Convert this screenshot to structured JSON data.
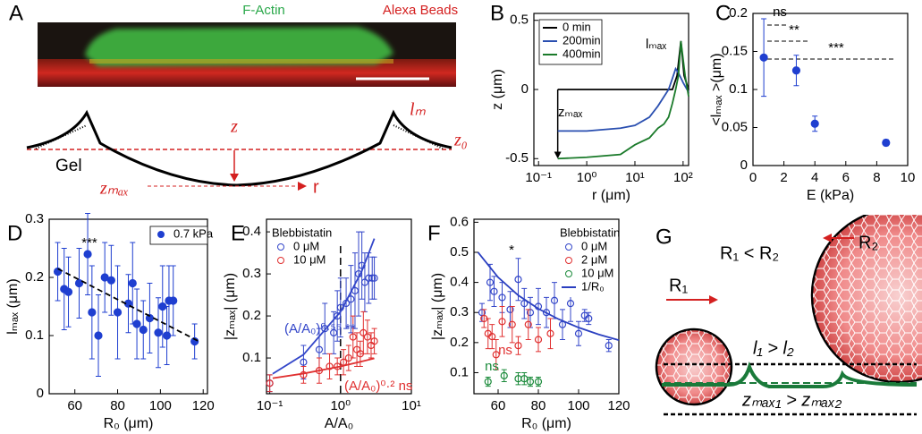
{
  "diagram_a": {
    "panel": "A",
    "labels": {
      "f_actin": "F-Actin",
      "alexa_beads": "Alexa Beads",
      "z": "z",
      "lm": "lₘ",
      "z0": "z₀",
      "gel": "Gel",
      "zmax": "zₘₐₓ",
      "r": "r"
    }
  },
  "diagram_g": {
    "panel": "G",
    "labels": {
      "r2": "R₂",
      "r1_lt_r2": "R₁ < R₂",
      "r1": "R₁",
      "l1_gt_l2": "l₁ > l₂",
      "zmax1_gt_zmax2": "zₘₐₓ₁ > zₘₐₓ₂"
    }
  },
  "chart_data": [
    {
      "panel": "B",
      "type": "line",
      "xlabel": "r (μm)",
      "ylabel": "z (μm)",
      "log_x": true,
      "xlim": [
        0.08,
        130
      ],
      "ylim": [
        -0.55,
        0.55
      ],
      "xticks": [
        {
          "value": 0.1,
          "label": "10⁻¹"
        },
        {
          "value": 1,
          "label": "10⁰"
        },
        {
          "value": 10,
          "label": "10¹"
        },
        {
          "value": 100,
          "label": "10²"
        }
      ],
      "yticks": [
        -0.5,
        0,
        0.5
      ],
      "legend": "upper left",
      "series": [
        {
          "name": "0 min",
          "color": "#000000",
          "style": "line",
          "x": [
            0.25,
            60,
            75,
            90,
            105,
            130
          ],
          "values": [
            0,
            0,
            0.1,
            0.35,
            0.1,
            0
          ]
        },
        {
          "name": "200min",
          "color": "#2a4fb0",
          "style": "line",
          "x": [
            0.25,
            1,
            5,
            10,
            20,
            30,
            50,
            60,
            70,
            80,
            100,
            130
          ],
          "values": [
            -0.3,
            -0.3,
            -0.28,
            -0.26,
            -0.2,
            -0.12,
            0,
            0.08,
            0.15,
            0.12,
            0.05,
            -0.02
          ]
        },
        {
          "name": "400min",
          "color": "#1a7a2a",
          "style": "line",
          "x": [
            0.25,
            1,
            5,
            10,
            20,
            30,
            40,
            50,
            60,
            70,
            80,
            90,
            110,
            130
          ],
          "values": [
            -0.5,
            -0.49,
            -0.47,
            -0.4,
            -0.35,
            -0.28,
            -0.25,
            -0.2,
            -0.1,
            0,
            0.1,
            0.35,
            0.1,
            -0.05
          ]
        }
      ],
      "annotations": [
        {
          "text": "lₘₐₓ",
          "color": "#000000"
        },
        {
          "text": "zₘₐₓ",
          "color": "#000000"
        }
      ]
    },
    {
      "panel": "C",
      "type": "scatter",
      "xlabel": "E (kPa)",
      "ylabel": "<lₘₐₓ >(μm)",
      "xlim": [
        0,
        10
      ],
      "ylim": [
        0,
        0.2
      ],
      "xticks": [
        0,
        2,
        4,
        6,
        8,
        10
      ],
      "yticks": [
        0,
        0.05,
        0.1,
        0.15,
        0.2
      ],
      "series": [
        {
          "color": "#1f3fd0",
          "style": "filled",
          "x": [
            0.7,
            2.8,
            4,
            8.6
          ],
          "values": [
            0.142,
            0.125,
            0.055,
            0.03
          ],
          "errors": [
            0.051,
            0.02,
            0.01,
            0.004
          ]
        }
      ],
      "annotations": [
        {
          "text": "ns",
          "color": "#000000"
        },
        {
          "text": "**",
          "color": "#000000"
        },
        {
          "text": "***",
          "color": "#000000"
        }
      ]
    },
    {
      "panel": "D",
      "type": "scatter",
      "xlabel": "R₀ (μm)",
      "ylabel": "lₘₐₓ (μm)",
      "xlim": [
        48,
        122
      ],
      "ylim": [
        0,
        0.3
      ],
      "xticks": [
        60,
        80,
        100,
        120
      ],
      "yticks": [
        0,
        0.1,
        0.2,
        0.3
      ],
      "legend": "upper right",
      "series": [
        {
          "name": "0.7 kPa",
          "color": "#1f3fd0",
          "style": "filled",
          "x": [
            52,
            55,
            57,
            62,
            66,
            68,
            71,
            74,
            77,
            80,
            85,
            87,
            89,
            92,
            95,
            99,
            101,
            103,
            104,
            106,
            116
          ],
          "values": [
            0.21,
            0.18,
            0.175,
            0.19,
            0.24,
            0.14,
            0.1,
            0.2,
            0.195,
            0.14,
            0.155,
            0.19,
            0.12,
            0.11,
            0.13,
            0.105,
            0.15,
            0.1,
            0.16,
            0.16,
            0.09
          ],
          "errors": [
            0.05,
            0.07,
            0.06,
            0.06,
            0.07,
            0.08,
            0.07,
            0.06,
            0.06,
            0.08,
            0.05,
            0.07,
            0.06,
            0.05,
            0.06,
            0.06,
            0.07,
            0.05,
            0.06,
            0.06,
            0.03
          ]
        },
        {
          "color": "#000000",
          "style": "dashed",
          "x": [
            52,
            118
          ],
          "values": [
            0.215,
            0.09
          ]
        }
      ],
      "annotations": [
        {
          "text": "***",
          "color": "#000000"
        }
      ]
    },
    {
      "panel": "E",
      "type": "scatter",
      "xlabel": "A/A₀",
      "ylabel": "|zₘₐₓ| (μm)",
      "log_x": true,
      "xlim": [
        0.09,
        10
      ],
      "ylim": [
        0.015,
        0.43
      ],
      "xticks": [
        {
          "value": 0.1,
          "label": "10⁻¹"
        },
        {
          "value": 1,
          "label": "10⁰"
        },
        {
          "value": 10,
          "label": "10¹"
        }
      ],
      "yticks": [
        0.1,
        0.2,
        0.3,
        0.4
      ],
      "legend": "upper left",
      "legend_title": "Blebbistatin",
      "series": [
        {
          "name": "0 μM",
          "color": "#3346c9",
          "style": "open",
          "x": [
            0.1,
            0.3,
            0.5,
            0.6,
            0.8,
            0.9,
            1,
            1.2,
            1.4,
            1.6,
            1.8,
            2,
            2.2,
            2.5,
            2.8,
            3
          ],
          "values": [
            0.04,
            0.09,
            0.12,
            0.17,
            0.16,
            0.2,
            0.22,
            0.23,
            0.24,
            0.26,
            0.3,
            0.32,
            0.28,
            0.29,
            0.29,
            0.29
          ],
          "errors": [
            0.02,
            0.04,
            0.05,
            0.06,
            0.05,
            0.06,
            0.07,
            0.06,
            0.08,
            0.09,
            0.1,
            0.08,
            0.07,
            0.06,
            0.05,
            0.05
          ]
        },
        {
          "name": "10 μM",
          "color": "#e03030",
          "style": "open",
          "x": [
            0.1,
            0.3,
            0.5,
            0.7,
            0.9,
            1.1,
            1.3,
            1.5,
            1.7,
            1.9,
            2.1,
            2.4,
            2.7,
            3
          ],
          "values": [
            0.04,
            0.06,
            0.07,
            0.08,
            0.08,
            0.09,
            0.1,
            0.15,
            0.12,
            0.11,
            0.16,
            0.15,
            0.13,
            0.14
          ],
          "errors": [
            0.02,
            0.02,
            0.03,
            0.03,
            0.02,
            0.03,
            0.03,
            0.05,
            0.04,
            0.03,
            0.05,
            0.04,
            0.03,
            0.03
          ]
        },
        {
          "color": "#3346c9",
          "style": "line",
          "x": [
            0.11,
            0.3,
            1,
            2,
            3
          ],
          "values": [
            0.0624,
            0.108,
            0.21,
            0.307,
            0.384
          ]
        },
        {
          "color": "#e03030",
          "style": "line",
          "x": [
            0.11,
            0.3,
            1,
            2,
            3
          ],
          "values": [
            0.052,
            0.063,
            0.08,
            0.092,
            0.099
          ]
        }
      ],
      "annotations": [
        {
          "text": "(A/A₀)⁰·⁵⁵ **",
          "color": "#3346c9"
        },
        {
          "text": "(A/A₀)⁰·² ns",
          "color": "#e03030"
        }
      ]
    },
    {
      "panel": "F",
      "type": "scatter",
      "xlabel": "R₀ (μm)",
      "ylabel": "|zₘₐₓ| (μm)",
      "xlim": [
        48,
        120
      ],
      "ylim": [
        0.03,
        0.61
      ],
      "xticks": [
        60,
        80,
        100,
        120
      ],
      "yticks": [
        0.1,
        0.2,
        0.3,
        0.4,
        0.5,
        0.6
      ],
      "legend": "upper right",
      "legend_title": "Blebbistatin",
      "series": [
        {
          "name": "0 μM",
          "color": "#3346c9",
          "style": "open",
          "x": [
            52,
            56,
            58,
            62,
            66,
            70,
            73,
            76,
            80,
            84,
            88,
            92,
            96,
            100,
            103,
            105,
            115
          ],
          "values": [
            0.3,
            0.4,
            0.37,
            0.35,
            0.31,
            0.41,
            0.33,
            0.3,
            0.32,
            0.3,
            0.34,
            0.26,
            0.33,
            0.23,
            0.29,
            0.28,
            0.19
          ],
          "errors": [
            0.03,
            0.06,
            0.05,
            0.05,
            0.06,
            0.07,
            0.05,
            0.05,
            0.06,
            0.05,
            0.06,
            0.05,
            0.06,
            0.04,
            0.02,
            0.02,
            0.02
          ]
        },
        {
          "name": "2 μM",
          "color": "#e03030",
          "style": "open",
          "x": [
            53,
            55,
            57,
            59,
            62,
            67,
            70,
            75,
            80,
            86
          ],
          "values": [
            0.28,
            0.23,
            0.22,
            0.16,
            0.27,
            0.26,
            0.19,
            0.26,
            0.21,
            0.23
          ],
          "errors": [
            0.03,
            0.05,
            0.04,
            0.05,
            0.05,
            0.06,
            0.03,
            0.05,
            0.04,
            0.05
          ]
        },
        {
          "name": "10 μM",
          "color": "#1a8a3a",
          "style": "open",
          "x": [
            55,
            63,
            70,
            73,
            76,
            80
          ],
          "values": [
            0.07,
            0.09,
            0.08,
            0.08,
            0.07,
            0.07
          ],
          "errors": [
            0.015,
            0.02,
            0.02,
            0.02,
            0.015,
            0.015
          ]
        },
        {
          "name": "1/R₀",
          "color": "#2a3fc0",
          "style": "line",
          "x": [
            50,
            60,
            70,
            80,
            90,
            100,
            110,
            120
          ],
          "values": [
            0.5,
            0.417,
            0.357,
            0.3125,
            0.278,
            0.25,
            0.227,
            0.208
          ]
        }
      ],
      "annotations": [
        {
          "text": "*",
          "color": "#000000"
        },
        {
          "text": "ns",
          "color": "#e03030"
        },
        {
          "text": "ns",
          "color": "#1a8a3a"
        }
      ]
    }
  ]
}
